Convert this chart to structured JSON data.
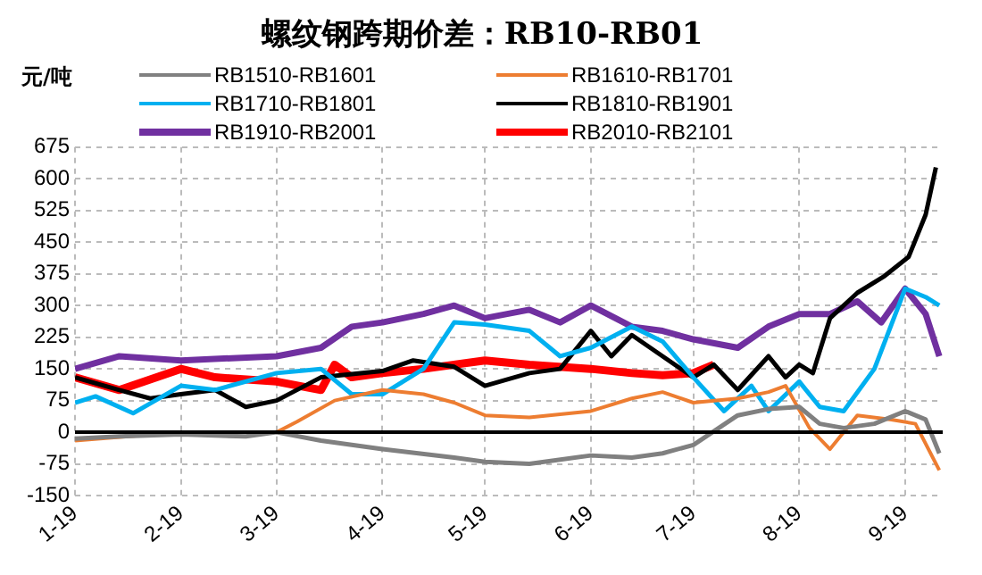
{
  "chart_data": {
    "type": "line",
    "title": "螺纹钢跨期价差：RB10-RB01",
    "annotations": [
      "元/吨"
    ],
    "ref_lines": [
      {
        "axis": "y",
        "value": 0,
        "color": "#000000"
      }
    ],
    "xlim": [
      "--01-19",
      "--09-30"
    ],
    "xticks": [
      {
        "value": "--01-19",
        "label": "1-19"
      },
      {
        "value": "--02-19",
        "label": "2-19"
      },
      {
        "value": "--03-19",
        "label": "3-19"
      },
      {
        "value": "--04-19",
        "label": "4-19"
      },
      {
        "value": "--05-19",
        "label": "5-19"
      },
      {
        "value": "--06-19",
        "label": "6-19"
      },
      {
        "value": "--07-19",
        "label": "7-19"
      },
      {
        "value": "--08-19",
        "label": "8-19"
      },
      {
        "value": "--09-19",
        "label": "9-19"
      }
    ],
    "ylim": [
      -150,
      675
    ],
    "yticks": [
      -150,
      -75,
      0,
      75,
      150,
      225,
      300,
      375,
      450,
      525,
      600,
      675
    ],
    "grid": true,
    "legend": "top",
    "marker": "none",
    "line_style": "solid",
    "series": [
      {
        "name": "RB1510-RB1601",
        "color": "#808080",
        "x": [
          "--01-19",
          "--02-01",
          "--02-19",
          "--03-10",
          "--03-19",
          "--04-01",
          "--04-19",
          "--05-10",
          "--05-19",
          "--06-01",
          "--06-19",
          "--07-01",
          "--07-10",
          "--07-19",
          "--08-01",
          "--08-10",
          "--08-19",
          "--08-25",
          "--09-01",
          "--09-10",
          "--09-19",
          "--09-25",
          "--09-29"
        ],
        "values": [
          -15,
          -10,
          -5,
          -10,
          0,
          -20,
          -40,
          -60,
          -70,
          -75,
          -55,
          -60,
          -50,
          -30,
          40,
          55,
          60,
          20,
          10,
          20,
          50,
          30,
          -50
        ]
      },
      {
        "name": "RB1610-RB1701",
        "color": "#ed7d31",
        "x": [
          "--01-19",
          "--02-19",
          "--03-10",
          "--03-19",
          "--03-25",
          "--04-05",
          "--04-19",
          "--05-01",
          "--05-10",
          "--05-19",
          "--06-01",
          "--06-19",
          "--07-01",
          "--07-10",
          "--07-19",
          "--08-01",
          "--08-10",
          "--08-15",
          "--08-22",
          "--08-28",
          "--09-05",
          "--09-15",
          "--09-22",
          "--09-29"
        ],
        "values": [
          -20,
          0,
          0,
          0,
          25,
          75,
          100,
          90,
          70,
          40,
          35,
          50,
          80,
          95,
          70,
          80,
          95,
          110,
          10,
          -40,
          40,
          30,
          20,
          -90
        ]
      },
      {
        "name": "RB1710-RB1801",
        "color": "#00b0f0",
        "x": [
          "--01-19",
          "--01-25",
          "--02-05",
          "--02-19",
          "--03-01",
          "--03-19",
          "--04-01",
          "--04-10",
          "--04-19",
          "--05-01",
          "--05-10",
          "--05-19",
          "--06-01",
          "--06-10",
          "--06-19",
          "--07-01",
          "--07-10",
          "--07-19",
          "--07-28",
          "--08-05",
          "--08-10",
          "--08-19",
          "--08-25",
          "--09-01",
          "--09-10",
          "--09-19",
          "--09-25",
          "--09-29"
        ],
        "values": [
          70,
          85,
          45,
          110,
          100,
          140,
          150,
          90,
          90,
          150,
          260,
          255,
          240,
          180,
          200,
          250,
          215,
          130,
          50,
          110,
          50,
          120,
          60,
          50,
          150,
          340,
          320,
          300
        ]
      },
      {
        "name": "RB1810-RB1901",
        "color": "#000000",
        "x": [
          "--01-19",
          "--02-01",
          "--02-10",
          "--02-19",
          "--03-01",
          "--03-10",
          "--03-19",
          "--04-01",
          "--04-19",
          "--04-28",
          "--05-10",
          "--05-19",
          "--06-01",
          "--06-10",
          "--06-19",
          "--06-25",
          "--07-01",
          "--07-10",
          "--07-19",
          "--07-25",
          "--08-01",
          "--08-10",
          "--08-15",
          "--08-19",
          "--08-23",
          "--08-28",
          "--09-05",
          "--09-13",
          "--09-20",
          "--09-25",
          "--09-28"
        ],
        "values": [
          130,
          100,
          80,
          90,
          100,
          60,
          75,
          130,
          145,
          170,
          155,
          110,
          140,
          150,
          240,
          180,
          230,
          180,
          130,
          160,
          100,
          180,
          130,
          160,
          140,
          270,
          330,
          370,
          415,
          515,
          627
        ]
      },
      {
        "name": "RB1910-RB2001",
        "color": "#7030a0",
        "x": [
          "--01-19",
          "--02-01",
          "--02-19",
          "--03-19",
          "--04-01",
          "--04-10",
          "--04-19",
          "--05-01",
          "--05-10",
          "--05-19",
          "--06-01",
          "--06-10",
          "--06-19",
          "--07-01",
          "--07-10",
          "--07-19",
          "--08-01",
          "--08-10",
          "--08-19",
          "--08-28",
          "--09-05",
          "--09-12",
          "--09-19",
          "--09-25",
          "--09-29"
        ],
        "values": [
          150,
          180,
          170,
          180,
          200,
          250,
          260,
          280,
          300,
          270,
          290,
          260,
          300,
          250,
          240,
          220,
          200,
          250,
          280,
          280,
          310,
          260,
          340,
          280,
          180
        ]
      },
      {
        "name": "RB2010-RB2101",
        "color": "#ff0000",
        "x": [
          "--01-19",
          "--02-01",
          "--02-19",
          "--03-01",
          "--03-19",
          "--04-01",
          "--04-05",
          "--04-10",
          "--04-19",
          "--05-01",
          "--05-19",
          "--06-01",
          "--06-19",
          "--07-01",
          "--07-10",
          "--07-19",
          "--07-25"
        ],
        "values": [
          130,
          100,
          150,
          130,
          120,
          100,
          160,
          130,
          140,
          150,
          170,
          160,
          150,
          140,
          135,
          140,
          160
        ]
      }
    ]
  }
}
